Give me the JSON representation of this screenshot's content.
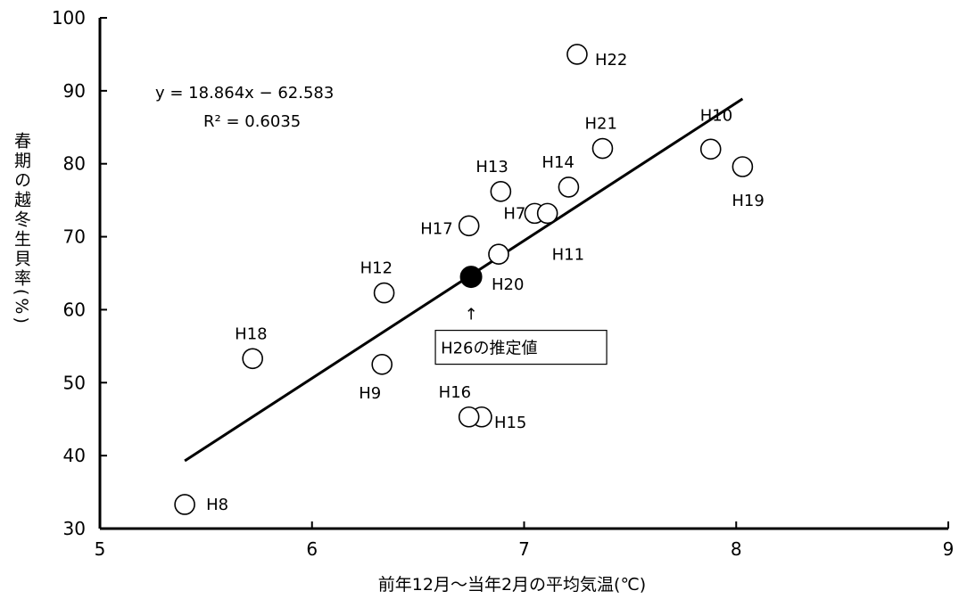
{
  "chart_data": {
    "type": "scatter",
    "xlabel": "前年12月～当年2月の平均気温(℃)",
    "ylabel": "春期の越冬生貝率(%)",
    "xlim": [
      5,
      9
    ],
    "ylim": [
      30,
      100
    ],
    "xticks": [
      5,
      6,
      7,
      8,
      9
    ],
    "yticks": [
      30,
      40,
      50,
      60,
      70,
      80,
      90,
      100
    ],
    "grid": false,
    "points": [
      {
        "label": "H7",
        "x": 7.05,
        "y": 73.2
      },
      {
        "label": "H8",
        "x": 5.4,
        "y": 33.3
      },
      {
        "label": "H9",
        "x": 6.33,
        "y": 52.5
      },
      {
        "label": "H10",
        "x": 7.88,
        "y": 82.0
      },
      {
        "label": "H11",
        "x": 7.11,
        "y": 73.2
      },
      {
        "label": "H12",
        "x": 6.34,
        "y": 62.3
      },
      {
        "label": "H13",
        "x": 6.89,
        "y": 76.2
      },
      {
        "label": "H14",
        "x": 7.21,
        "y": 76.8
      },
      {
        "label": "H15",
        "x": 6.8,
        "y": 45.3
      },
      {
        "label": "H16",
        "x": 6.74,
        "y": 45.3
      },
      {
        "label": "H17",
        "x": 6.74,
        "y": 71.5
      },
      {
        "label": "H18",
        "x": 5.72,
        "y": 53.3
      },
      {
        "label": "H19",
        "x": 8.03,
        "y": 79.6
      },
      {
        "label": "H20",
        "x": 6.88,
        "y": 67.6
      },
      {
        "label": "H21",
        "x": 7.37,
        "y": 82.1
      },
      {
        "label": "H22",
        "x": 7.25,
        "y": 95.0
      }
    ],
    "estimate": {
      "label": "H26の推定値",
      "x": 6.75,
      "y": 64.5
    },
    "trendline": {
      "x": [
        5.4,
        8.03
      ],
      "slope": 18.864,
      "intercept": -62.583,
      "equation": "y = 18.864x − 62.583",
      "r2_label": "R² = 0.6035"
    },
    "arrow_symbol": "↑"
  }
}
